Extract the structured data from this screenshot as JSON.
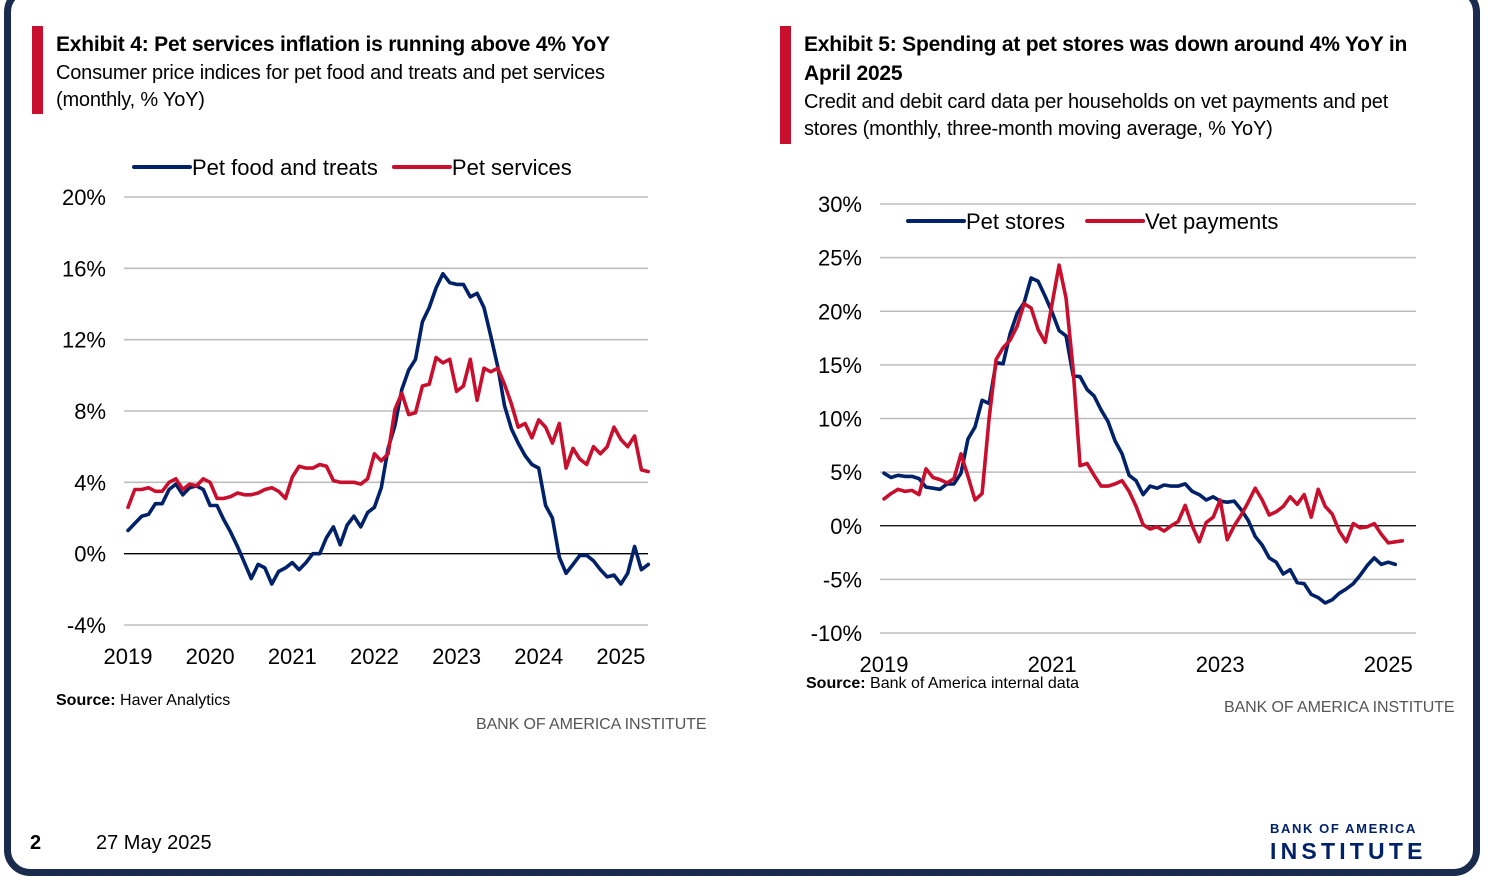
{
  "footer": {
    "page": "2",
    "date": "27 May 2025"
  },
  "logo": {
    "line1": "BANK OF AMERICA",
    "line2": "INSTITUTE"
  },
  "exhibit4": {
    "title": "Exhibit 4: Pet services inflation is running above 4% YoY",
    "subtitle": "Consumer price indices for pet food and treats and pet services (monthly, % YoY)",
    "source_label": "Source:",
    "source_text": "Haver Analytics",
    "brand": "BANK OF AMERICA INSTITUTE"
  },
  "exhibit5": {
    "title": "Exhibit 5: Spending at pet stores was down around 4% YoY in April 2025",
    "subtitle": "Credit and debit card data per households on vet payments and pet stores (monthly, three-month moving average, % YoY)",
    "source_label": "Source:",
    "source_text": "Bank of America internal data",
    "brand": "BANK OF AMERICA INSTITUTE"
  },
  "chart_data": [
    {
      "type": "line",
      "title": "Exhibit 4: Pet services inflation is running above 4% YoY",
      "xlabel": "",
      "ylabel": "% YoY",
      "x_start": 2019.0,
      "x_step": 0.08333333,
      "xlim": [
        2019.0,
        2025.33
      ],
      "ylim": [
        -4,
        20
      ],
      "yticks": [
        -4,
        0,
        4,
        8,
        12,
        16,
        20
      ],
      "ytick_labels": [
        "-4%",
        "0%",
        "4%",
        "8%",
        "12%",
        "16%",
        "20%"
      ],
      "xticks": [
        2019,
        2020,
        2021,
        2022,
        2023,
        2024,
        2025
      ],
      "xtick_labels": [
        "2019",
        "2020",
        "2021",
        "2022",
        "2023",
        "2024",
        "2025"
      ],
      "zero_line": 0,
      "legend": [
        "Pet food and treats",
        "Pet services"
      ],
      "legend_position": "top",
      "series": [
        {
          "name": "Pet food and treats",
          "color": "#012169",
          "values": [
            1.3,
            1.7,
            2.1,
            2.2,
            2.8,
            2.8,
            3.6,
            3.9,
            3.3,
            3.7,
            3.8,
            3.6,
            2.7,
            2.7,
            1.9,
            1.2,
            0.4,
            -0.5,
            -1.4,
            -0.6,
            -0.8,
            -1.7,
            -1.0,
            -0.8,
            -0.5,
            -0.9,
            -0.5,
            0.0,
            0.0,
            0.9,
            1.5,
            0.5,
            1.6,
            2.1,
            1.5,
            2.3,
            2.6,
            3.7,
            5.9,
            7.2,
            9.2,
            10.3,
            10.9,
            13.0,
            13.8,
            14.9,
            15.7,
            15.2,
            15.1,
            15.1,
            14.4,
            14.6,
            13.8,
            12.2,
            10.5,
            8.3,
            7.0,
            6.2,
            5.5,
            5.0,
            4.8,
            2.7,
            2.0,
            -0.2,
            -1.1,
            -0.6,
            -0.1,
            -0.1,
            -0.4,
            -0.9,
            -1.3,
            -1.2,
            -1.7,
            -1.1,
            0.4,
            -0.9,
            -0.6
          ]
        },
        {
          "name": "Pet services",
          "color": "#c8102e",
          "values": [
            2.6,
            3.6,
            3.6,
            3.7,
            3.5,
            3.5,
            4.0,
            4.2,
            3.6,
            3.9,
            3.8,
            4.2,
            4.0,
            3.1,
            3.1,
            3.2,
            3.4,
            3.3,
            3.3,
            3.4,
            3.6,
            3.7,
            3.5,
            3.1,
            4.3,
            4.9,
            4.8,
            4.8,
            5.0,
            4.9,
            4.1,
            4.0,
            4.0,
            4.0,
            3.9,
            4.2,
            5.6,
            5.2,
            5.6,
            8.1,
            9.0,
            7.8,
            7.9,
            9.4,
            9.5,
            11.0,
            10.7,
            10.9,
            9.1,
            9.4,
            10.9,
            8.6,
            10.4,
            10.2,
            10.4,
            9.5,
            8.4,
            7.1,
            7.3,
            6.5,
            7.5,
            7.1,
            6.2,
            7.3,
            4.8,
            5.9,
            5.3,
            5.0,
            6.0,
            5.6,
            6.0,
            7.1,
            6.4,
            6.0,
            6.6,
            4.7,
            4.6
          ]
        }
      ]
    },
    {
      "type": "line",
      "title": "Exhibit 5: Spending at pet stores was down around 4% YoY in April 2025",
      "xlabel": "",
      "ylabel": "% YoY",
      "x_start": 2019.0,
      "x_step": 0.08333333,
      "xlim": [
        2019.0,
        2025.33
      ],
      "ylim": [
        -10,
        30
      ],
      "yticks": [
        -10,
        -5,
        0,
        5,
        10,
        15,
        20,
        25,
        30
      ],
      "ytick_labels": [
        "-10%",
        "-5%",
        "0%",
        "5%",
        "10%",
        "15%",
        "20%",
        "25%",
        "30%"
      ],
      "xticks": [
        2019,
        2021,
        2023,
        2025
      ],
      "xtick_labels": [
        "2019",
        "2021",
        "2023",
        "2025"
      ],
      "zero_line": 0,
      "legend": [
        "Pet stores",
        "Vet payments"
      ],
      "legend_position": "top",
      "series": [
        {
          "name": "Pet stores",
          "color": "#012169",
          "values": [
            4.9,
            4.5,
            4.7,
            4.6,
            4.6,
            4.4,
            3.6,
            3.5,
            3.4,
            3.9,
            3.9,
            4.9,
            8.1,
            9.2,
            11.7,
            11.4,
            15.2,
            15.1,
            17.9,
            19.8,
            20.8,
            23.1,
            22.8,
            21.4,
            19.9,
            18.2,
            17.7,
            14.0,
            13.9,
            12.7,
            12.1,
            10.8,
            9.7,
            7.9,
            6.7,
            4.7,
            4.2,
            2.9,
            3.7,
            3.5,
            3.8,
            3.7,
            3.7,
            3.9,
            3.2,
            2.9,
            2.4,
            2.7,
            2.3,
            2.2,
            2.3,
            1.5,
            0.5,
            -1.0,
            -1.8,
            -3.0,
            -3.4,
            -4.5,
            -4.1,
            -5.3,
            -5.4,
            -6.4,
            -6.7,
            -7.2,
            -6.9,
            -6.3,
            -5.9,
            -5.4,
            -4.6,
            -3.7,
            -3.0,
            -3.6,
            -3.4,
            -3.6
          ]
        },
        {
          "name": "Vet payments",
          "color": "#c8102e",
          "values": [
            2.5,
            3.0,
            3.4,
            3.2,
            3.3,
            2.9,
            5.3,
            4.5,
            4.3,
            4.0,
            4.4,
            6.7,
            4.6,
            2.4,
            3.0,
            10.0,
            15.5,
            16.6,
            17.3,
            18.6,
            20.7,
            20.3,
            18.3,
            17.1,
            20.7,
            24.3,
            21.2,
            14.6,
            5.6,
            5.8,
            4.7,
            3.7,
            3.7,
            3.9,
            4.2,
            3.2,
            1.8,
            0.1,
            -0.3,
            -0.1,
            -0.5,
            0.0,
            0.4,
            1.9,
            0.0,
            -1.5,
            0.3,
            0.8,
            2.4,
            -1.3,
            0.0,
            1.0,
            2.2,
            3.5,
            2.4,
            1.0,
            1.3,
            1.8,
            2.7,
            2.0,
            2.9,
            0.8,
            3.4,
            1.8,
            1.1,
            -0.5,
            -1.5,
            0.2,
            -0.2,
            -0.1,
            0.2,
            -0.8,
            -1.6,
            -1.5,
            -1.4
          ]
        }
      ]
    }
  ]
}
